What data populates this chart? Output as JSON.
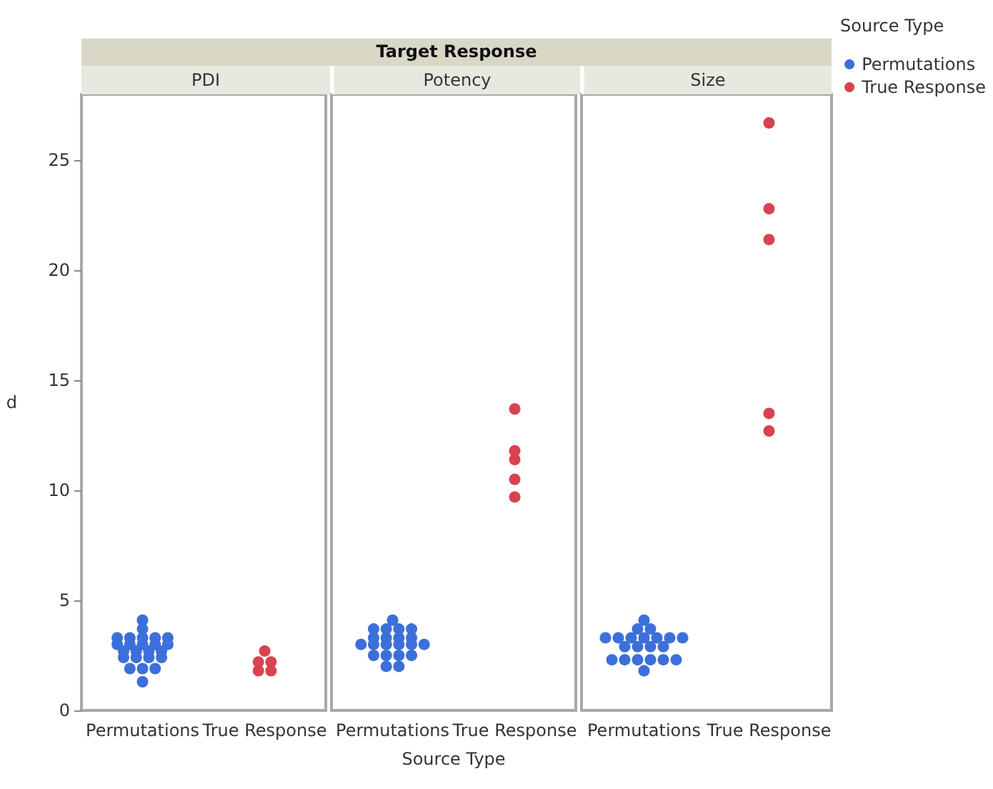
{
  "chart_data": [
    {
      "type": "scatter",
      "title": "PDI",
      "annotations": [
        "Target Response"
      ],
      "ylabel": "d",
      "categories": [
        "Permutations",
        "True Response"
      ],
      "ylim": [
        0,
        28
      ],
      "yticks": [
        0,
        5,
        10,
        15,
        20,
        25
      ],
      "grid": false,
      "marker": "circle",
      "series": [
        {
          "color": "#3c6fd9",
          "x": [
            "Permutations",
            "Permutations",
            "Permutations",
            "Permutations",
            "Permutations",
            "Permutations",
            "Permutations",
            "Permutations",
            "Permutations",
            "Permutations",
            "Permutations",
            "Permutations",
            "Permutations",
            "Permutations",
            "Permutations",
            "Permutations",
            "Permutations",
            "Permutations",
            "Permutations",
            "Permutations",
            "Permutations",
            "Permutations",
            "Permutations",
            "Permutations"
          ],
          "values": [
            4.1,
            3.7,
            3.3,
            3.3,
            3.3,
            3.3,
            3.3,
            3.0,
            3.0,
            3.0,
            3.0,
            3.0,
            2.7,
            2.7,
            2.7,
            2.7,
            2.4,
            2.4,
            2.4,
            2.4,
            1.9,
            1.9,
            1.9,
            1.3
          ]
        },
        {
          "color": "#d8434f",
          "x": [
            "True Response",
            "True Response",
            "True Response",
            "True Response",
            "True Response"
          ],
          "values": [
            2.7,
            2.2,
            2.2,
            1.8,
            1.8
          ]
        }
      ]
    },
    {
      "type": "scatter",
      "title": "Potency",
      "xlabel": "Source Type",
      "categories": [
        "Permutations",
        "True Response"
      ],
      "ylim": [
        0,
        28
      ],
      "yticks": [
        0,
        5,
        10,
        15,
        20,
        25
      ],
      "tick_labels": "x",
      "grid": false,
      "marker": "circle",
      "series": [
        {
          "color": "#3c6fd9",
          "x": [
            "Permutations",
            "Permutations",
            "Permutations",
            "Permutations",
            "Permutations",
            "Permutations",
            "Permutations",
            "Permutations",
            "Permutations",
            "Permutations",
            "Permutations",
            "Permutations",
            "Permutations",
            "Permutations",
            "Permutations",
            "Permutations",
            "Permutations",
            "Permutations",
            "Permutations",
            "Permutations",
            "Permutations"
          ],
          "values": [
            4.1,
            3.7,
            3.7,
            3.7,
            3.7,
            3.3,
            3.3,
            3.3,
            3.3,
            3.0,
            3.0,
            3.0,
            3.0,
            3.0,
            3.0,
            2.5,
            2.5,
            2.5,
            2.5,
            2.0,
            2.0
          ]
        },
        {
          "color": "#d8434f",
          "x": [
            "True Response",
            "True Response",
            "True Response",
            "True Response",
            "True Response"
          ],
          "values": [
            13.7,
            11.8,
            11.4,
            10.5,
            9.7
          ]
        }
      ]
    },
    {
      "type": "scatter",
      "title": "Size",
      "legend_title": "Source Type",
      "legend": "top right",
      "categories": [
        "Permutations",
        "True Response"
      ],
      "ylim": [
        0,
        28
      ],
      "yticks": [
        0,
        5,
        10,
        15,
        20,
        25
      ],
      "tick_labels": "x",
      "grid": false,
      "marker": "circle",
      "series": [
        {
          "name": "Permutations",
          "color": "#3c6fd9",
          "x": [
            "Permutations",
            "Permutations",
            "Permutations",
            "Permutations",
            "Permutations",
            "Permutations",
            "Permutations",
            "Permutations",
            "Permutations",
            "Permutations",
            "Permutations",
            "Permutations",
            "Permutations",
            "Permutations",
            "Permutations",
            "Permutations",
            "Permutations",
            "Permutations",
            "Permutations",
            "Permutations",
            "Permutations"
          ],
          "values": [
            4.1,
            3.7,
            3.7,
            3.3,
            3.3,
            3.3,
            3.3,
            3.3,
            3.3,
            3.3,
            2.9,
            2.9,
            2.9,
            2.9,
            2.3,
            2.3,
            2.3,
            2.3,
            2.3,
            2.3,
            1.8
          ]
        },
        {
          "name": "True Response",
          "color": "#d8434f",
          "x": [
            "True Response",
            "True Response",
            "True Response",
            "True Response",
            "True Response"
          ],
          "values": [
            26.7,
            22.8,
            21.4,
            13.5,
            12.7
          ]
        }
      ]
    }
  ]
}
